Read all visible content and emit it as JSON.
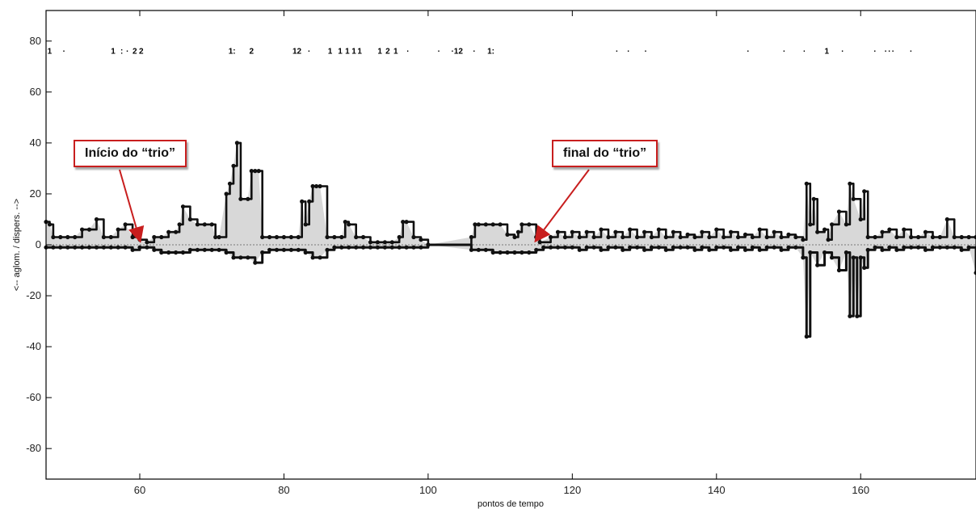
{
  "chart_data": {
    "type": "line",
    "xlabel": "pontos de tempo",
    "ylabel": "<-- aglom. / dispers. -->",
    "xlim": [
      47,
      176
    ],
    "ylim": [
      -92,
      92
    ],
    "x_ticks": [
      60,
      80,
      100,
      120,
      140,
      160
    ],
    "y_ticks": [
      -80,
      -60,
      -40,
      -20,
      0,
      20,
      40,
      60,
      80
    ],
    "grid": false,
    "series": [
      {
        "values_upper": [
          [
            47,
            9
          ],
          [
            47.5,
            8
          ],
          [
            48,
            3
          ],
          [
            49,
            3
          ],
          [
            50,
            3
          ],
          [
            51,
            3
          ],
          [
            52,
            6
          ],
          [
            53,
            6
          ],
          [
            54,
            10
          ],
          [
            55,
            3
          ],
          [
            56,
            3
          ],
          [
            57,
            6
          ],
          [
            58,
            8
          ],
          [
            59,
            3
          ],
          [
            60,
            2
          ],
          [
            61,
            1
          ],
          [
            62,
            3
          ],
          [
            63,
            3
          ],
          [
            64,
            5
          ],
          [
            65,
            5
          ],
          [
            65.5,
            8
          ],
          [
            66,
            15
          ],
          [
            67,
            10
          ],
          [
            68,
            8
          ],
          [
            69,
            8
          ],
          [
            70,
            8
          ],
          [
            70.5,
            3
          ],
          [
            71,
            3
          ],
          [
            72,
            20
          ],
          [
            72.5,
            24
          ],
          [
            73,
            31
          ],
          [
            73.5,
            40
          ],
          [
            74,
            18
          ],
          [
            75,
            18
          ],
          [
            75.5,
            29
          ],
          [
            76,
            29
          ],
          [
            76.5,
            29
          ],
          [
            77,
            3
          ],
          [
            78,
            3
          ],
          [
            79,
            3
          ],
          [
            80,
            3
          ],
          [
            81,
            3
          ],
          [
            82,
            3
          ],
          [
            82.5,
            17
          ],
          [
            83,
            8
          ],
          [
            83.5,
            17
          ],
          [
            84,
            23
          ],
          [
            84.5,
            23
          ],
          [
            85,
            23
          ],
          [
            86,
            3
          ],
          [
            87,
            3
          ],
          [
            88,
            3
          ],
          [
            88.5,
            9
          ],
          [
            89,
            8
          ],
          [
            90,
            3
          ],
          [
            91,
            3
          ],
          [
            92,
            1
          ],
          [
            93,
            1
          ],
          [
            94,
            1
          ],
          [
            95,
            1
          ],
          [
            96,
            3
          ],
          [
            96.5,
            9
          ],
          [
            97,
            9
          ],
          [
            98,
            3
          ],
          [
            99,
            2
          ],
          [
            100,
            0
          ],
          [
            106,
            3
          ],
          [
            106.5,
            8
          ],
          [
            107,
            8
          ],
          [
            108,
            8
          ],
          [
            109,
            8
          ],
          [
            110,
            8
          ],
          [
            111,
            4
          ],
          [
            112,
            3
          ],
          [
            112.5,
            5
          ],
          [
            113,
            8
          ],
          [
            114,
            8
          ],
          [
            115,
            3
          ],
          [
            115.5,
            1
          ],
          [
            117,
            3
          ],
          [
            118,
            5
          ],
          [
            119,
            3
          ],
          [
            120,
            5
          ],
          [
            121,
            3
          ],
          [
            122,
            5
          ],
          [
            123,
            3
          ],
          [
            124,
            6
          ],
          [
            125,
            3
          ],
          [
            126,
            5
          ],
          [
            127,
            3
          ],
          [
            128,
            6
          ],
          [
            129,
            3
          ],
          [
            130,
            5
          ],
          [
            131,
            3
          ],
          [
            132,
            6
          ],
          [
            133,
            3
          ],
          [
            134,
            5
          ],
          [
            135,
            3
          ],
          [
            136,
            4
          ],
          [
            137,
            3
          ],
          [
            138,
            5
          ],
          [
            139,
            3
          ],
          [
            140,
            6
          ],
          [
            141,
            3
          ],
          [
            142,
            5
          ],
          [
            143,
            3
          ],
          [
            144,
            4
          ],
          [
            145,
            3
          ],
          [
            146,
            6
          ],
          [
            147,
            3
          ],
          [
            148,
            5
          ],
          [
            149,
            3
          ],
          [
            150,
            4
          ],
          [
            151,
            3
          ],
          [
            152,
            2
          ],
          [
            152.5,
            24
          ],
          [
            153,
            8
          ],
          [
            153.5,
            18
          ],
          [
            154,
            5
          ],
          [
            155,
            6
          ],
          [
            155.5,
            2
          ],
          [
            156,
            8
          ],
          [
            157,
            13
          ],
          [
            158,
            8
          ],
          [
            158.5,
            24
          ],
          [
            159,
            18
          ],
          [
            160,
            10
          ],
          [
            160.5,
            21
          ],
          [
            161,
            3
          ],
          [
            162,
            3
          ],
          [
            163,
            5
          ],
          [
            164,
            6
          ],
          [
            165,
            3
          ],
          [
            166,
            6
          ],
          [
            167,
            3
          ],
          [
            168,
            3
          ],
          [
            169,
            5
          ],
          [
            170,
            3
          ],
          [
            171,
            3
          ],
          [
            172,
            10
          ],
          [
            173,
            3
          ],
          [
            174,
            3
          ],
          [
            175,
            3
          ],
          [
            176,
            3
          ]
        ],
        "values_lower": [
          [
            47,
            -1
          ],
          [
            48,
            -1
          ],
          [
            49,
            -1
          ],
          [
            50,
            -1
          ],
          [
            51,
            -1
          ],
          [
            52,
            -1
          ],
          [
            53,
            -1
          ],
          [
            54,
            -1
          ],
          [
            55,
            -1
          ],
          [
            56,
            -1
          ],
          [
            57,
            -1
          ],
          [
            58,
            -1
          ],
          [
            59,
            -2
          ],
          [
            60,
            -1
          ],
          [
            61,
            -1
          ],
          [
            62,
            -2
          ],
          [
            63,
            -3
          ],
          [
            64,
            -3
          ],
          [
            65,
            -3
          ],
          [
            66,
            -3
          ],
          [
            67,
            -2
          ],
          [
            68,
            -2
          ],
          [
            69,
            -2
          ],
          [
            70,
            -2
          ],
          [
            71,
            -2
          ],
          [
            72,
            -3
          ],
          [
            73,
            -5
          ],
          [
            74,
            -5
          ],
          [
            75,
            -5
          ],
          [
            76,
            -7
          ],
          [
            77,
            -3
          ],
          [
            78,
            -2
          ],
          [
            79,
            -2
          ],
          [
            80,
            -2
          ],
          [
            81,
            -2
          ],
          [
            82,
            -2
          ],
          [
            83,
            -3
          ],
          [
            84,
            -5
          ],
          [
            85,
            -5
          ],
          [
            86,
            -2
          ],
          [
            87,
            -1
          ],
          [
            88,
            -1
          ],
          [
            89,
            -1
          ],
          [
            90,
            -1
          ],
          [
            91,
            -1
          ],
          [
            92,
            -1
          ],
          [
            93,
            -1
          ],
          [
            94,
            -1
          ],
          [
            95,
            -1
          ],
          [
            96,
            -1
          ],
          [
            97,
            -1
          ],
          [
            98,
            -1
          ],
          [
            99,
            -1
          ],
          [
            100,
            0
          ],
          [
            106,
            -2
          ],
          [
            107,
            -2
          ],
          [
            108,
            -2
          ],
          [
            109,
            -3
          ],
          [
            110,
            -3
          ],
          [
            111,
            -3
          ],
          [
            112,
            -3
          ],
          [
            113,
            -3
          ],
          [
            114,
            -3
          ],
          [
            115,
            -2
          ],
          [
            116,
            -1
          ],
          [
            117,
            -1
          ],
          [
            118,
            -1
          ],
          [
            119,
            -1
          ],
          [
            120,
            -1
          ],
          [
            121,
            -2
          ],
          [
            122,
            -1
          ],
          [
            123,
            -1
          ],
          [
            124,
            -2
          ],
          [
            125,
            -1
          ],
          [
            126,
            -1
          ],
          [
            127,
            -2
          ],
          [
            128,
            -1
          ],
          [
            129,
            -1
          ],
          [
            130,
            -2
          ],
          [
            131,
            -1
          ],
          [
            132,
            -1
          ],
          [
            133,
            -2
          ],
          [
            134,
            -1
          ],
          [
            135,
            -1
          ],
          [
            136,
            -1
          ],
          [
            137,
            -2
          ],
          [
            138,
            -1
          ],
          [
            139,
            -2
          ],
          [
            140,
            -1
          ],
          [
            141,
            -1
          ],
          [
            142,
            -2
          ],
          [
            143,
            -1
          ],
          [
            144,
            -2
          ],
          [
            145,
            -1
          ],
          [
            146,
            -2
          ],
          [
            147,
            -1
          ],
          [
            148,
            -1
          ],
          [
            149,
            -2
          ],
          [
            150,
            -1
          ],
          [
            151,
            -1
          ],
          [
            152,
            -5
          ],
          [
            152.5,
            -36
          ],
          [
            153,
            -3
          ],
          [
            154,
            -8
          ],
          [
            155,
            -3
          ],
          [
            156,
            -5
          ],
          [
            157,
            -10
          ],
          [
            158,
            -3
          ],
          [
            158.5,
            -28
          ],
          [
            159,
            -5
          ],
          [
            159.5,
            -28
          ],
          [
            160,
            -5
          ],
          [
            160.5,
            -9
          ],
          [
            161,
            -2
          ],
          [
            162,
            -1
          ],
          [
            163,
            -2
          ],
          [
            164,
            -1
          ],
          [
            165,
            -2
          ],
          [
            166,
            -1
          ],
          [
            167,
            -1
          ],
          [
            168,
            -1
          ],
          [
            169,
            -2
          ],
          [
            170,
            -1
          ],
          [
            171,
            -1
          ],
          [
            172,
            -1
          ],
          [
            173,
            -1
          ],
          [
            174,
            -2
          ],
          [
            175,
            -1
          ],
          [
            176,
            -11
          ]
        ]
      }
    ],
    "top_marks": [
      {
        "x": 47.5,
        "text": "1"
      },
      {
        "x": 49.5,
        "text": "·"
      },
      {
        "x": 56.3,
        "text": "1"
      },
      {
        "x": 57.5,
        "text": ":"
      },
      {
        "x": 58.3,
        "text": "·"
      },
      {
        "x": 59.3,
        "text": "2"
      },
      {
        "x": 60.2,
        "text": "2"
      },
      {
        "x": 72.8,
        "text": "1:"
      },
      {
        "x": 75.5,
        "text": "2"
      },
      {
        "x": 81.8,
        "text": "12"
      },
      {
        "x": 83.5,
        "text": "·"
      },
      {
        "x": 86.4,
        "text": "1"
      },
      {
        "x": 87.8,
        "text": "1"
      },
      {
        "x": 88.8,
        "text": "1"
      },
      {
        "x": 89.7,
        "text": "1"
      },
      {
        "x": 90.5,
        "text": "1"
      },
      {
        "x": 93.3,
        "text": "1"
      },
      {
        "x": 94.4,
        "text": "2"
      },
      {
        "x": 95.5,
        "text": "1"
      },
      {
        "x": 97.2,
        "text": "·"
      },
      {
        "x": 101.5,
        "text": "·"
      },
      {
        "x": 103.4,
        "text": "·"
      },
      {
        "x": 104.2,
        "text": "12"
      },
      {
        "x": 106.4,
        "text": "·"
      },
      {
        "x": 108.7,
        "text": "1:"
      },
      {
        "x": 126.2,
        "text": "·"
      },
      {
        "x": 127.8,
        "text": "·"
      },
      {
        "x": 130.2,
        "text": "·"
      },
      {
        "x": 144.4,
        "text": "·"
      },
      {
        "x": 149.4,
        "text": "·"
      },
      {
        "x": 152.2,
        "text": "·"
      },
      {
        "x": 155.3,
        "text": "1"
      },
      {
        "x": 157.5,
        "text": "·"
      },
      {
        "x": 162,
        "text": "·"
      },
      {
        "x": 163.5,
        "text": "·"
      },
      {
        "x": 164,
        "text": "·"
      },
      {
        "x": 164.5,
        "text": "·"
      },
      {
        "x": 167,
        "text": "·"
      }
    ],
    "annotations": [
      {
        "text": "Início do “trio”",
        "arrow_to": [
          60,
          0
        ]
      },
      {
        "text": "final do “trio”",
        "arrow_to": [
          115,
          0
        ]
      }
    ],
    "colors": {
      "line": "#111111",
      "fill": "#b8b8b8",
      "annotation_border": "#c81e1e",
      "annotation_arrow": "#c81e1e"
    }
  }
}
